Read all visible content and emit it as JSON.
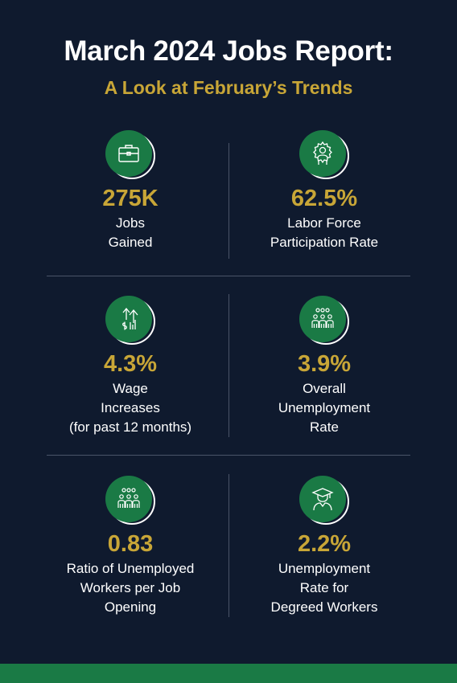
{
  "header": {
    "title": "March 2024 Jobs Report:",
    "subtitle": "A Look at February’s Trends"
  },
  "colors": {
    "background": "#0f1a2e",
    "accent_gold": "#c8a637",
    "icon_green": "#1a7a45"
  },
  "stats": [
    {
      "icon": "briefcase-icon",
      "value": "275K",
      "label_lines": [
        "Jobs",
        "Gained"
      ]
    },
    {
      "icon": "gear-person-icon",
      "value": "62.5%",
      "label_lines": [
        "Labor Force",
        "Participation Rate"
      ]
    },
    {
      "icon": "wage-increase-icon",
      "value": "4.3%",
      "label_lines": [
        "Wage",
        "Increases",
        "(for past 12 months)"
      ]
    },
    {
      "icon": "people-group-icon",
      "value": "3.9%",
      "label_lines": [
        "Overall",
        "Unemployment",
        "Rate"
      ]
    },
    {
      "icon": "people-group-icon",
      "value": "0.83",
      "label_lines": [
        "Ratio of Unemployed",
        "Workers per Job",
        "Opening"
      ]
    },
    {
      "icon": "graduate-icon",
      "value": "2.2%",
      "label_lines": [
        "Unemployment",
        "Rate for",
        "Degreed Workers"
      ]
    }
  ]
}
